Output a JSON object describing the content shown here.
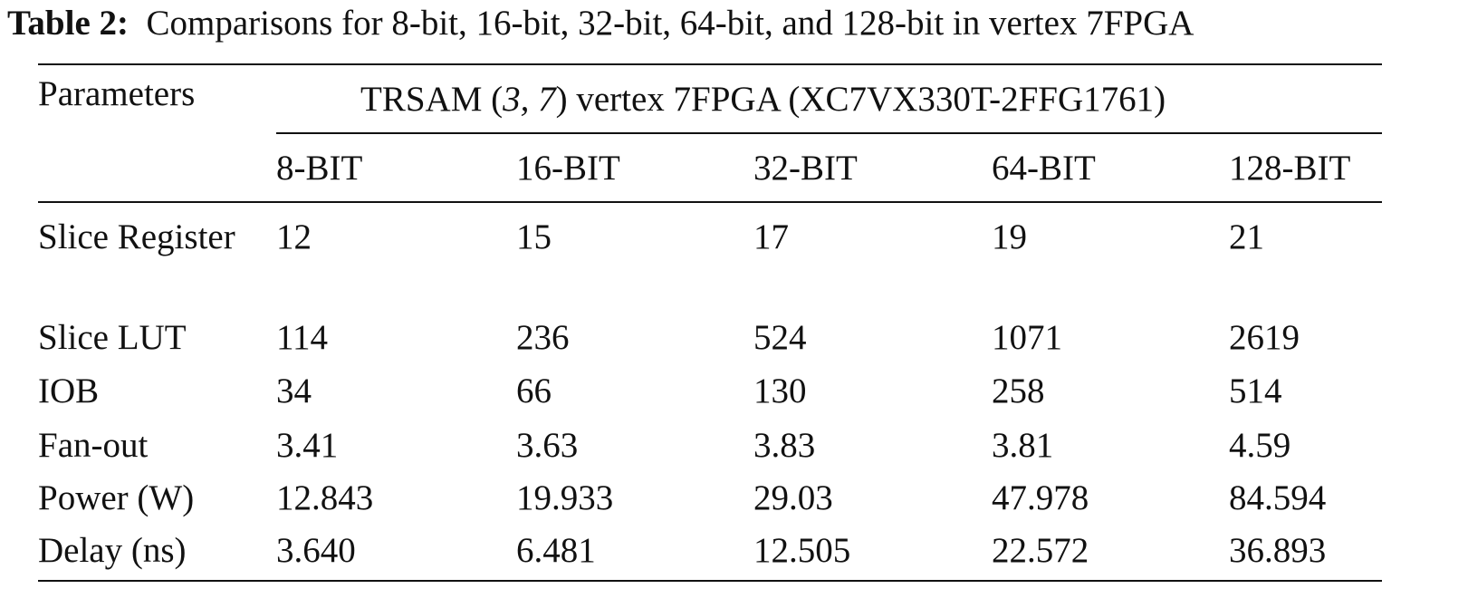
{
  "caption": {
    "label": "Table 2:",
    "text": "Comparisons for 8-bit, 16-bit, 32-bit, 64-bit, and 128-bit in vertex 7FPGA"
  },
  "table": {
    "corner": "Parameters",
    "group_header": [
      "TRSAM (",
      "3, 7",
      ") vertex 7FPGA (XC7VX330T-2FFG1761)"
    ],
    "columns": [
      "8-BIT",
      "16-BIT",
      "32-BIT",
      "64-BIT",
      "128-BIT"
    ],
    "rows": [
      [
        "Slice Register",
        "12",
        "15",
        "17",
        "19",
        "21"
      ],
      [
        "Slice LUT",
        "114",
        "236",
        "524",
        "1071",
        "2619"
      ],
      [
        "IOB",
        "34",
        "66",
        "130",
        "258",
        "514"
      ],
      [
        "Fan-out",
        "3.41",
        "3.63",
        "3.83",
        "3.81",
        "4.59"
      ],
      [
        "Power (W)",
        "12.843",
        "19.933",
        "29.03",
        "47.978",
        "84.594"
      ],
      [
        "Delay (ns)",
        "3.640",
        "6.481",
        "12.505",
        "22.572",
        "36.893"
      ]
    ]
  }
}
